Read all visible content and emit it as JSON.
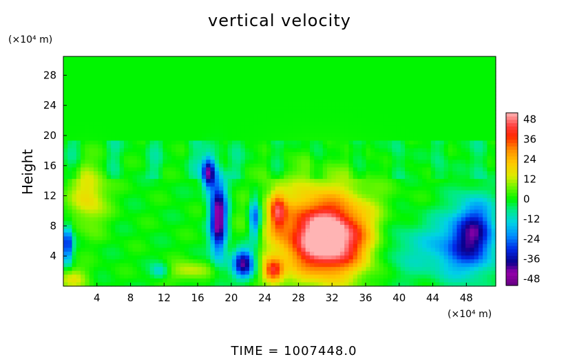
{
  "chart_data": {
    "type": "heatmap",
    "title": "vertical velocity",
    "xlabel": "",
    "x_unit": "(×10⁴ m)",
    "ylabel": "Height",
    "y_unit": "(×10⁴ m)",
    "xlim": [
      0,
      51.5
    ],
    "ylim": [
      0,
      30.5
    ],
    "xticks": [
      4,
      8,
      12,
      16,
      20,
      24,
      28,
      32,
      36,
      40,
      44,
      48
    ],
    "yticks": [
      4,
      8,
      12,
      16,
      20,
      24,
      28
    ],
    "colorbar": {
      "ticks": [
        48,
        36,
        24,
        12,
        0,
        -12,
        -24,
        -36,
        -48
      ],
      "range": [
        -52,
        52
      ],
      "placement": "right"
    },
    "footer": "TIME  =  1007448.0",
    "features": [
      {
        "kind": "updraft",
        "x": 31.5,
        "y": 6,
        "rx": 4.5,
        "ry": 4.5,
        "peak": 44
      },
      {
        "kind": "updraft",
        "x": 30.5,
        "y": 8,
        "rx": 6.5,
        "ry": 6.5,
        "peak": 24
      },
      {
        "kind": "updraft",
        "x": 25,
        "y": 2,
        "rx": 1.2,
        "ry": 1.6,
        "peak": 36
      },
      {
        "kind": "updraft",
        "x": 25.5,
        "y": 10,
        "rx": 1,
        "ry": 2.5,
        "peak": 30
      },
      {
        "kind": "updraft",
        "x": 3,
        "y": 12,
        "rx": 2.2,
        "ry": 4,
        "peak": 18
      },
      {
        "kind": "updraft",
        "x": 15,
        "y": 2,
        "rx": 2.5,
        "ry": 1.2,
        "peak": 14
      },
      {
        "kind": "updraft",
        "x": 1,
        "y": 1,
        "rx": 2,
        "ry": 1.5,
        "peak": 14
      },
      {
        "kind": "downdraft",
        "x": 18.5,
        "y": 9,
        "rx": 1,
        "ry": 5,
        "peak": -48
      },
      {
        "kind": "downdraft",
        "x": 17.3,
        "y": 15,
        "rx": 0.8,
        "ry": 2.2,
        "peak": -42
      },
      {
        "kind": "downdraft",
        "x": 21.5,
        "y": 3,
        "rx": 1.3,
        "ry": 2,
        "peak": -42
      },
      {
        "kind": "downdraft",
        "x": 22.8,
        "y": 9,
        "rx": 0.7,
        "ry": 3,
        "peak": -30
      },
      {
        "kind": "downdraft",
        "x": 49,
        "y": 7,
        "rx": 2.5,
        "ry": 4.5,
        "peak": -34
      },
      {
        "kind": "downdraft",
        "x": 46,
        "y": 5,
        "rx": 3.5,
        "ry": 4,
        "peak": -18
      },
      {
        "kind": "downdraft",
        "x": 0.5,
        "y": 5.5,
        "rx": 0.6,
        "ry": 2.5,
        "peak": -32
      },
      {
        "kind": "downdraft",
        "x": 11.5,
        "y": 2,
        "rx": 1,
        "ry": 1,
        "peak": -14
      },
      {
        "kind": "downdraft",
        "x": 40,
        "y": 5,
        "rx": 3,
        "ry": 4,
        "peak": -10
      }
    ]
  }
}
